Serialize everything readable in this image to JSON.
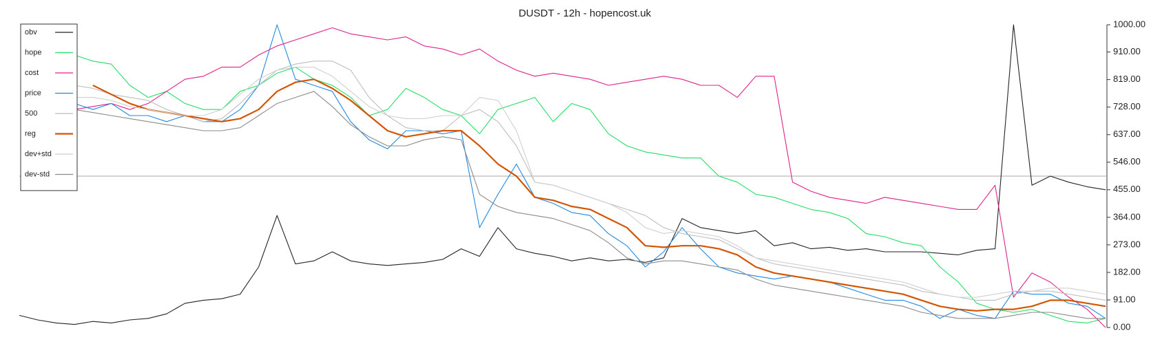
{
  "chart_data": {
    "type": "line",
    "title": "DUSDT - 12h - hopencost.uk",
    "ylim": [
      0,
      1000
    ],
    "yticks": [
      {
        "value": 0,
        "label": "0.00"
      },
      {
        "value": 91,
        "label": "91.00"
      },
      {
        "value": 182,
        "label": "182.00"
      },
      {
        "value": 273,
        "label": "273.00"
      },
      {
        "value": 364,
        "label": "364.00"
      },
      {
        "value": 455,
        "label": "455.00"
      },
      {
        "value": 546,
        "label": "546.00"
      },
      {
        "value": 637,
        "label": "637.00"
      },
      {
        "value": 728,
        "label": "728.00"
      },
      {
        "value": 819,
        "label": "819.00"
      },
      {
        "value": 910,
        "label": "910.00"
      },
      {
        "value": 1000,
        "label": "1000.00"
      }
    ],
    "reference_line": 500,
    "legend": "top-left",
    "series": [
      {
        "name": "obv",
        "color": "#222222",
        "values": [
          40,
          25,
          15,
          10,
          20,
          15,
          25,
          30,
          45,
          80,
          90,
          95,
          110,
          200,
          370,
          210,
          220,
          250,
          220,
          210,
          205,
          210,
          215,
          225,
          260,
          235,
          330,
          260,
          245,
          235,
          220,
          230,
          220,
          225,
          215,
          230,
          360,
          330,
          320,
          310,
          320,
          270,
          280,
          260,
          265,
          255,
          260,
          250,
          250,
          250,
          245,
          240,
          255,
          260,
          1000,
          470,
          500,
          480,
          465,
          455
        ]
      },
      {
        "name": "hope",
        "color": "#22dd66",
        "values": [
          null,
          null,
          null,
          900,
          880,
          870,
          800,
          760,
          780,
          740,
          720,
          720,
          780,
          800,
          840,
          860,
          820,
          800,
          760,
          700,
          720,
          790,
          760,
          720,
          700,
          640,
          720,
          740,
          760,
          680,
          740,
          720,
          640,
          600,
          580,
          570,
          560,
          560,
          500,
          480,
          440,
          430,
          410,
          390,
          380,
          360,
          310,
          300,
          280,
          270,
          200,
          150,
          80,
          60,
          50,
          60,
          40,
          20,
          15,
          30
        ]
      },
      {
        "name": "cost",
        "color": "#e0208a",
        "values": [
          null,
          null,
          null,
          720,
          730,
          740,
          720,
          740,
          780,
          820,
          830,
          860,
          860,
          900,
          930,
          950,
          970,
          990,
          970,
          960,
          950,
          960,
          930,
          920,
          900,
          920,
          880,
          850,
          830,
          840,
          830,
          820,
          800,
          810,
          820,
          830,
          820,
          800,
          800,
          760,
          830,
          830,
          480,
          450,
          430,
          420,
          410,
          430,
          420,
          410,
          400,
          390,
          390,
          470,
          100,
          180,
          150,
          100,
          60,
          0
        ]
      },
      {
        "name": "price",
        "color": "#1e88e5",
        "values": [
          null,
          null,
          null,
          740,
          720,
          740,
          700,
          700,
          680,
          700,
          680,
          680,
          720,
          800,
          1000,
          820,
          800,
          780,
          680,
          620,
          590,
          650,
          650,
          640,
          650,
          330,
          440,
          540,
          430,
          410,
          380,
          370,
          310,
          270,
          200,
          250,
          330,
          260,
          200,
          180,
          170,
          160,
          170,
          160,
          150,
          130,
          110,
          90,
          90,
          70,
          30,
          60,
          40,
          30,
          120,
          110,
          110,
          80,
          70,
          30
        ]
      },
      {
        "name": "500",
        "color": "#bdbdbd",
        "values": [
          null,
          null,
          null,
          800,
          790,
          770,
          760,
          750,
          720,
          700,
          680,
          690,
          740,
          800,
          850,
          870,
          880,
          880,
          850,
          760,
          700,
          660,
          650,
          650,
          700,
          720,
          680,
          600,
          480,
          470,
          450,
          430,
          410,
          390,
          370,
          330,
          310,
          300,
          290,
          260,
          230,
          210,
          200,
          190,
          180,
          170,
          160,
          150,
          140,
          120,
          110,
          100,
          90,
          90,
          110,
          120,
          120,
          110,
          100,
          90
        ]
      },
      {
        "name": "reg",
        "color": "#d35400",
        "values": [
          null,
          null,
          null,
          null,
          800,
          770,
          740,
          720,
          710,
          700,
          690,
          680,
          690,
          720,
          780,
          810,
          820,
          790,
          750,
          700,
          650,
          630,
          640,
          650,
          650,
          600,
          540,
          500,
          430,
          420,
          400,
          390,
          360,
          330,
          270,
          265,
          270,
          270,
          260,
          240,
          200,
          180,
          170,
          160,
          150,
          140,
          130,
          120,
          110,
          90,
          70,
          60,
          55,
          60,
          60,
          70,
          90,
          90,
          80,
          70
        ]
      },
      {
        "name": "dev+std",
        "color": "#cfcfcf",
        "values": [
          null,
          null,
          null,
          760,
          760,
          750,
          730,
          720,
          710,
          700,
          700,
          720,
          770,
          820,
          850,
          860,
          860,
          830,
          780,
          730,
          700,
          690,
          690,
          700,
          700,
          760,
          750,
          650,
          480,
          470,
          450,
          430,
          410,
          380,
          330,
          310,
          320,
          310,
          300,
          270,
          230,
          220,
          210,
          200,
          190,
          180,
          170,
          160,
          150,
          130,
          110,
          100,
          100,
          110,
          120,
          120,
          130,
          130,
          120,
          110
        ]
      },
      {
        "name": "dev-std",
        "color": "#8a8a8a",
        "values": [
          null,
          null,
          null,
          720,
          710,
          700,
          690,
          680,
          670,
          660,
          650,
          650,
          660,
          700,
          740,
          760,
          780,
          730,
          670,
          630,
          600,
          600,
          620,
          630,
          620,
          440,
          400,
          380,
          370,
          360,
          340,
          320,
          280,
          230,
          210,
          220,
          220,
          210,
          200,
          190,
          160,
          140,
          130,
          120,
          110,
          100,
          90,
          80,
          70,
          50,
          40,
          30,
          30,
          30,
          40,
          50,
          50,
          40,
          30,
          30
        ]
      }
    ]
  }
}
